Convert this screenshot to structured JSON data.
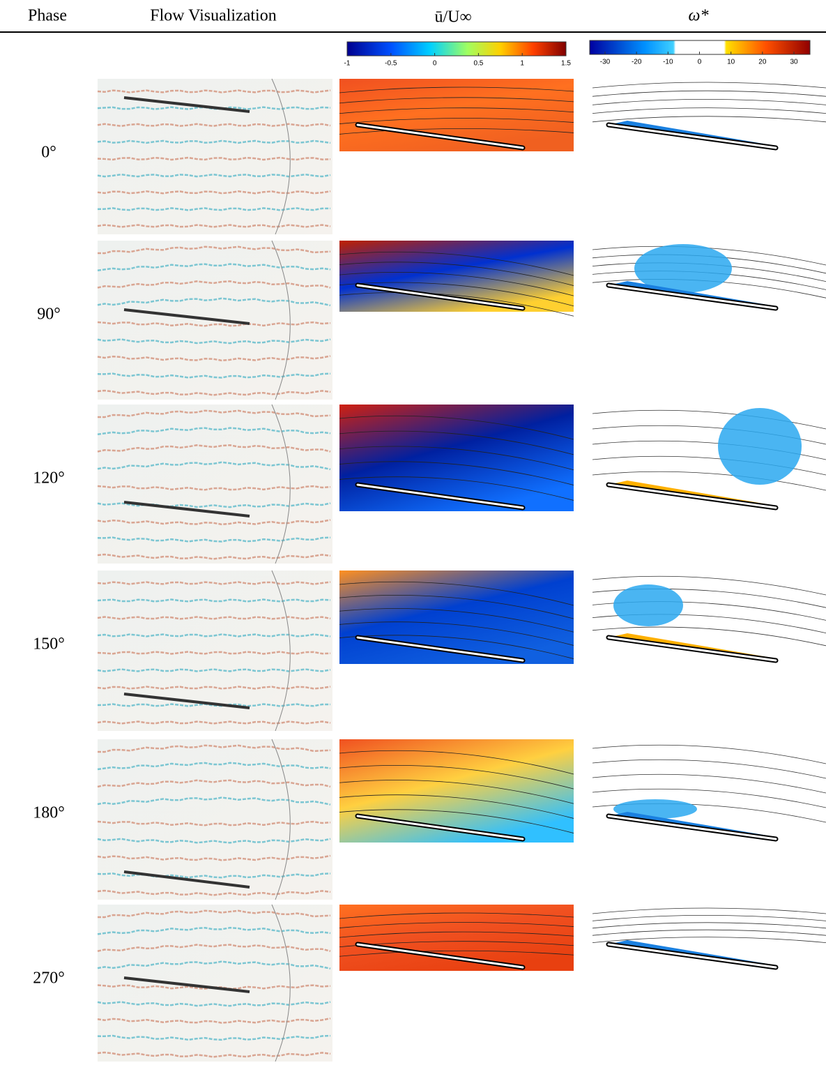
{
  "header": {
    "phase": "Phase",
    "flow": "Flow Visualization",
    "velocity": "ū/U∞",
    "vorticity": "ω*"
  },
  "colorbars": {
    "velocity": [
      -1,
      -0.5,
      0,
      0.5,
      1,
      1.5
    ],
    "vorticity": [
      -30,
      -20,
      -10,
      0,
      10,
      20,
      30
    ]
  },
  "rows": [
    "0°",
    "90°",
    "120°",
    "150°",
    "180°",
    "270°"
  ]
}
